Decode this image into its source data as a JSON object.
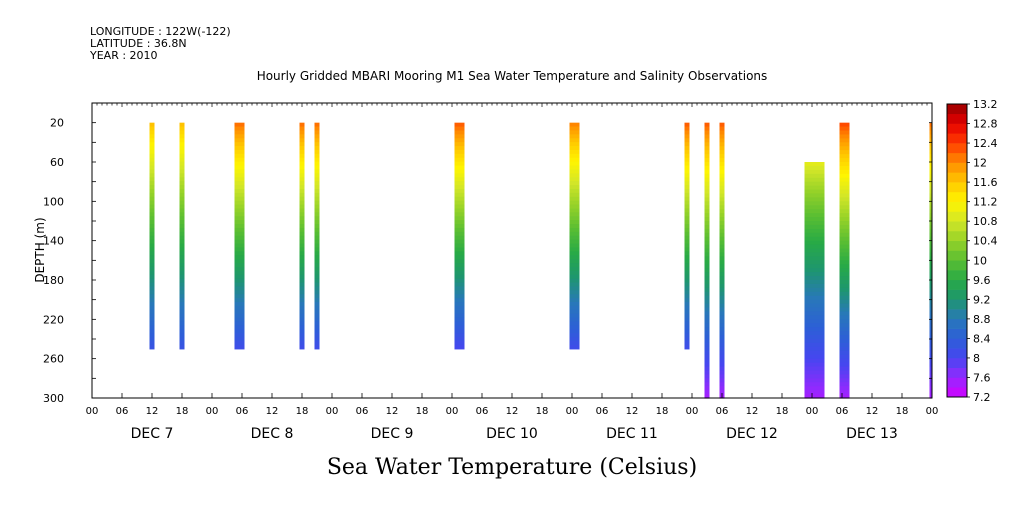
{
  "header": {
    "longitude": "LONGITUDE : 122W(-122)",
    "latitude": "LATITUDE : 36.8N",
    "year": "YEAR : 2010"
  },
  "chart_data": {
    "type": "heatmap",
    "title": "Hourly Gridded MBARI Mooring M1 Sea Water Temperature and Salinity Observations",
    "xlabel": "",
    "ylabel": "DEPTH (m)",
    "bottom_label": "Sea Water Temperature (Celsius)",
    "x_unit": "hours since Dec 7 00:00",
    "xlim": [
      0,
      168
    ],
    "ylim": [
      300,
      0
    ],
    "y_ticks": [
      20,
      60,
      100,
      140,
      180,
      220,
      260,
      300
    ],
    "x_tick_labels": [
      "00",
      "06",
      "12",
      "18",
      "00",
      "06",
      "12",
      "18",
      "00",
      "06",
      "12",
      "18",
      "00",
      "06",
      "12",
      "18",
      "00",
      "06",
      "12",
      "18",
      "00",
      "06",
      "12",
      "18",
      "00",
      "06",
      "12",
      "18",
      "00"
    ],
    "day_labels": [
      "DEC  7",
      "DEC  8",
      "DEC  9",
      "DEC  10",
      "DEC  11",
      "DEC  12",
      "DEC  13"
    ],
    "colorbar": {
      "min": 7.2,
      "max": 13.2,
      "step": 0.2,
      "tick_labels": [
        "13.2",
        "12.8",
        "12.4",
        "12",
        "11.6",
        "11.2",
        "10.8",
        "10.4",
        "10",
        "9.6",
        "9.2",
        "8.8",
        "8.4",
        "8",
        "7.6",
        "7.2"
      ]
    },
    "profiles": [
      {
        "t0": 11.5,
        "t1": 12.5,
        "ztop": 20,
        "zbot": 250,
        "ttop": 11.7,
        "tbot": 8.2
      },
      {
        "t0": 17.5,
        "t1": 18.5,
        "ztop": 20,
        "zbot": 250,
        "ttop": 11.7,
        "tbot": 8.2
      },
      {
        "t0": 28.5,
        "t1": 30.5,
        "ztop": 20,
        "zbot": 250,
        "ttop": 12.2,
        "tbot": 8.1
      },
      {
        "t0": 41.5,
        "t1": 42.5,
        "ztop": 20,
        "zbot": 250,
        "ttop": 12.2,
        "tbot": 8.1
      },
      {
        "t0": 44.5,
        "t1": 45.5,
        "ztop": 20,
        "zbot": 250,
        "ttop": 12.2,
        "tbot": 8.1
      },
      {
        "t0": 72.5,
        "t1": 74.5,
        "ztop": 20,
        "zbot": 250,
        "ttop": 12.3,
        "tbot": 8.0
      },
      {
        "t0": 95.5,
        "t1": 97.5,
        "ztop": 20,
        "zbot": 250,
        "ttop": 12.1,
        "tbot": 8.1
      },
      {
        "t0": 118.5,
        "t1": 119.5,
        "ztop": 20,
        "zbot": 250,
        "ttop": 12.3,
        "tbot": 8.1
      },
      {
        "t0": 122.5,
        "t1": 123.5,
        "ztop": 20,
        "zbot": 300,
        "ttop": 12.3,
        "tbot": 7.5
      },
      {
        "t0": 125.5,
        "t1": 126.5,
        "ztop": 20,
        "zbot": 300,
        "ttop": 12.3,
        "tbot": 7.5
      },
      {
        "t0": 142.5,
        "t1": 146.5,
        "ztop": 60,
        "zbot": 300,
        "ttop": 11.0,
        "tbot": 7.5
      },
      {
        "t0": 149.5,
        "t1": 151.5,
        "ztop": 20,
        "zbot": 300,
        "ttop": 12.4,
        "tbot": 7.5
      },
      {
        "t0": 167.5,
        "t1": 168.0,
        "ztop": 20,
        "zbot": 300,
        "ttop": 12.2,
        "tbot": 7.5
      }
    ]
  }
}
